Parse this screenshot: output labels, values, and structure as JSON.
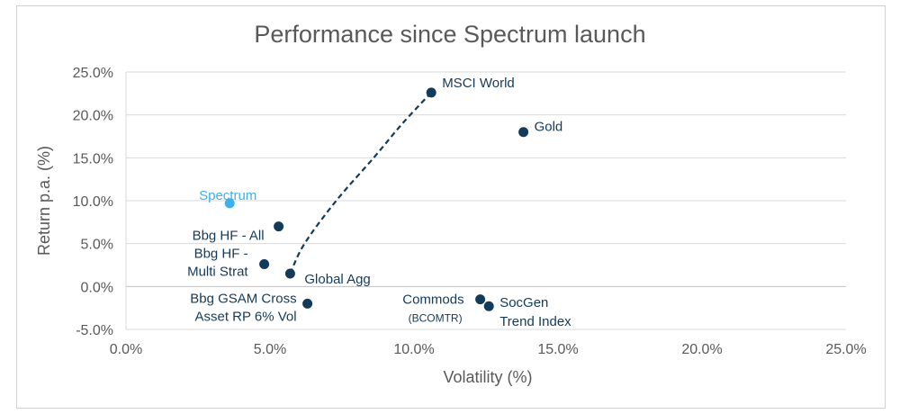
{
  "chart_data": {
    "type": "scatter",
    "title": "Performance since Spectrum launch",
    "xlabel": "Volatility (%)",
    "ylabel": "Return p.a. (%)",
    "xlim": [
      0,
      25
    ],
    "ylim": [
      -5,
      25
    ],
    "x_ticks": [
      "0.0%",
      "5.0%",
      "10.0%",
      "15.0%",
      "20.0%",
      "25.0%"
    ],
    "y_ticks": [
      "-5.0%",
      "0.0%",
      "5.0%",
      "10.0%",
      "15.0%",
      "20.0%",
      "25.0%"
    ],
    "grid": "horizontal",
    "colors": {
      "highlight": "#3eb1ec",
      "point": "#143a5a",
      "frontier": "#143a5a"
    },
    "points": [
      {
        "name": "Spectrum",
        "x": 3.6,
        "y": 9.7,
        "highlight": true,
        "label_lines": [
          "Spectrum"
        ]
      },
      {
        "name": "Bbg HF - All",
        "x": 5.3,
        "y": 7.0,
        "label_lines": [
          "Bbg HF - All"
        ]
      },
      {
        "name": "Bbg HF - Multi Strat",
        "x": 4.8,
        "y": 2.6,
        "label_lines": [
          "Bbg HF -",
          "Multi Strat"
        ]
      },
      {
        "name": "Global Agg",
        "x": 5.7,
        "y": 1.5,
        "label_lines": [
          "Global Agg"
        ]
      },
      {
        "name": "Bbg GSAM Cross Asset RP 6% Vol",
        "x": 6.3,
        "y": -2.0,
        "label_lines": [
          "Bbg GSAM  Cross",
          "Asset RP 6% Vol"
        ]
      },
      {
        "name": "MSCI World",
        "x": 10.6,
        "y": 22.6,
        "label_lines": [
          "MSCI World"
        ]
      },
      {
        "name": "Gold",
        "x": 13.8,
        "y": 18.0,
        "label_lines": [
          "Gold"
        ]
      },
      {
        "name": "Commods",
        "x": 12.3,
        "y": -1.5,
        "label_lines": [
          "Commods"
        ],
        "sub_label": "(BCOMTR)"
      },
      {
        "name": "SocGen Trend Index",
        "x": 12.6,
        "y": -2.3,
        "label_lines": [
          "SocGen",
          "Trend Index"
        ]
      }
    ],
    "frontier": [
      [
        5.7,
        1.5
      ],
      [
        6.2,
        5.0
      ],
      [
        7.3,
        10.0
      ],
      [
        8.6,
        15.0
      ],
      [
        9.6,
        19.0
      ],
      [
        10.6,
        22.6
      ]
    ]
  }
}
